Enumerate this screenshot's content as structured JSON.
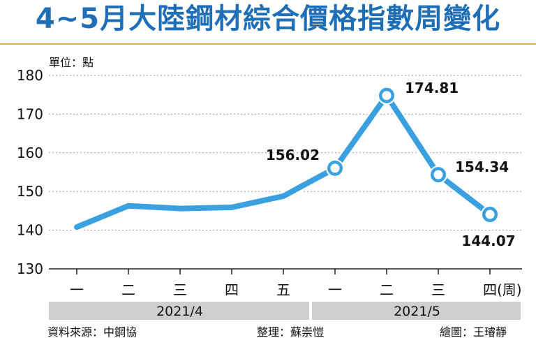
{
  "title": "4~5月大陸鋼材綜合價格指數周變化",
  "unit_label": "單位：點",
  "footer": {
    "source": "資料來源：中鋼協",
    "editor": "整理：蘇崇愷",
    "illustrator": "繪圖：王璿靜"
  },
  "colors": {
    "title": "#1f6fb8",
    "line": "#3ba0e0",
    "title_rule": "#e2b43a",
    "month_band": "#cfcfcf",
    "grid": "#9a9a9a"
  },
  "chart_data": {
    "type": "line",
    "title": "4~5月大陸鋼材綜合價格指數周變化",
    "ylabel": "單位：點",
    "xlabel": "",
    "ylim": [
      130,
      180
    ],
    "yticks": [
      "130",
      "140",
      "150",
      "160",
      "170",
      "180"
    ],
    "grid": "horizontal dotted",
    "categories": [
      "一",
      "二",
      "三",
      "四",
      "五",
      "一",
      "二",
      "三",
      "四(周)"
    ],
    "months": [
      {
        "label": "2021/4",
        "count": 5
      },
      {
        "label": "2021/5",
        "count": 4
      }
    ],
    "values": [
      140.8,
      146.3,
      145.6,
      145.9,
      148.8,
      156.02,
      174.81,
      154.34,
      144.07
    ],
    "data_labels": [
      {
        "index": 5,
        "text": "156.02"
      },
      {
        "index": 6,
        "text": "174.81"
      },
      {
        "index": 7,
        "text": "154.34"
      },
      {
        "index": 8,
        "text": "144.07"
      }
    ]
  }
}
